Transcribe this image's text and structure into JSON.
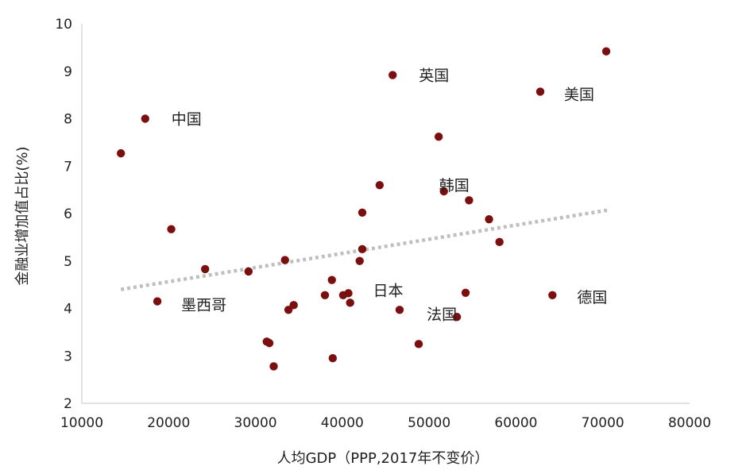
{
  "chart_data": {
    "type": "scatter",
    "title": "",
    "xlabel": "人均GDP（PPP,2017年不变价）",
    "ylabel": "金融业增加值占比(%)",
    "xlim": [
      10000,
      80000
    ],
    "ylim": [
      2,
      10
    ],
    "x_ticks": [
      10000,
      20000,
      30000,
      40000,
      50000,
      60000,
      70000,
      80000
    ],
    "y_ticks": [
      2,
      3,
      4,
      5,
      6,
      7,
      8,
      9,
      10
    ],
    "grid": false,
    "marker_color": "#7b0f0f",
    "trendline": {
      "color": "#bfbfbf",
      "style": "dotted",
      "x": [
        14500,
        70500
      ],
      "y": [
        4.4,
        6.07
      ]
    },
    "points": [
      {
        "x": 14500,
        "y": 7.27,
        "label": ""
      },
      {
        "x": 17300,
        "y": 8.0,
        "label": "中国"
      },
      {
        "x": 18700,
        "y": 4.15,
        "label": "墨西哥"
      },
      {
        "x": 20300,
        "y": 5.67,
        "label": ""
      },
      {
        "x": 24200,
        "y": 4.83,
        "label": ""
      },
      {
        "x": 29200,
        "y": 4.78,
        "label": ""
      },
      {
        "x": 31300,
        "y": 3.3,
        "label": ""
      },
      {
        "x": 31600,
        "y": 3.27,
        "label": ""
      },
      {
        "x": 32100,
        "y": 2.78,
        "label": ""
      },
      {
        "x": 33400,
        "y": 5.02,
        "label": ""
      },
      {
        "x": 33800,
        "y": 3.97,
        "label": ""
      },
      {
        "x": 34400,
        "y": 4.07,
        "label": ""
      },
      {
        "x": 38000,
        "y": 4.28,
        "label": ""
      },
      {
        "x": 38800,
        "y": 4.6,
        "label": ""
      },
      {
        "x": 38900,
        "y": 2.95,
        "label": ""
      },
      {
        "x": 40100,
        "y": 4.28,
        "label": ""
      },
      {
        "x": 40700,
        "y": 4.32,
        "label": "日本"
      },
      {
        "x": 40900,
        "y": 4.12,
        "label": ""
      },
      {
        "x": 42000,
        "y": 5.0,
        "label": ""
      },
      {
        "x": 42300,
        "y": 6.02,
        "label": ""
      },
      {
        "x": 42300,
        "y": 5.25,
        "label": ""
      },
      {
        "x": 44300,
        "y": 6.6,
        "label": ""
      },
      {
        "x": 45800,
        "y": 8.92,
        "label": "英国"
      },
      {
        "x": 46600,
        "y": 3.97,
        "label": ""
      },
      {
        "x": 48800,
        "y": 3.25,
        "label": ""
      },
      {
        "x": 51100,
        "y": 7.62,
        "label": ""
      },
      {
        "x": 51700,
        "y": 6.47,
        "label": "韩国"
      },
      {
        "x": 53200,
        "y": 3.82,
        "label": "法国"
      },
      {
        "x": 54200,
        "y": 4.33,
        "label": ""
      },
      {
        "x": 54600,
        "y": 6.28,
        "label": ""
      },
      {
        "x": 56900,
        "y": 5.88,
        "label": ""
      },
      {
        "x": 58100,
        "y": 5.4,
        "label": ""
      },
      {
        "x": 62800,
        "y": 8.57,
        "label": "美国"
      },
      {
        "x": 64200,
        "y": 4.28,
        "label": "德国"
      },
      {
        "x": 70400,
        "y": 9.42,
        "label": ""
      }
    ]
  }
}
